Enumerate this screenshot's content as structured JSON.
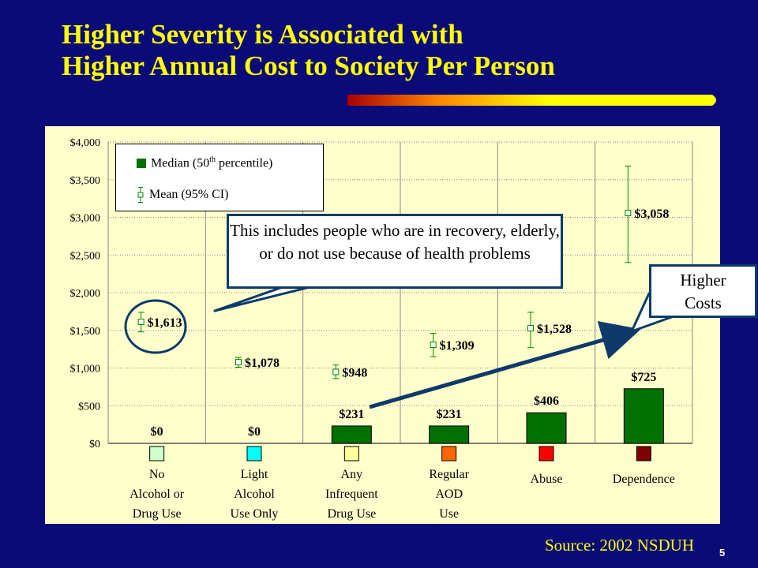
{
  "slide": {
    "title_line1": "Higher Severity is Associated with",
    "title_line2": "Higher Annual Cost to Society Per Person",
    "source": "Source: 2002 NSDUH",
    "page_number": "5",
    "colors": {
      "background": "#0a0a78",
      "title": "#ffff00",
      "plot_area": "#ffffcc",
      "median_bar": "#007000",
      "mean_marker": "#008800"
    }
  },
  "legend": {
    "median_label_pre": "Median (50",
    "median_label_sup": "th",
    "median_label_post": " percentile)",
    "mean_label": "Mean (95% CI)"
  },
  "callouts": {
    "health_note": "This includes  people who are in recovery, elderly, or do not use because of health problems",
    "higher_costs_line1": "Higher",
    "higher_costs_line2": "Costs"
  },
  "chart_data": {
    "type": "bar",
    "categories": [
      "No Alcohol or Drug Use",
      "Light Alcohol Use Only",
      "Any Infrequent Drug Use",
      "Regular AOD Use",
      "Abuse",
      "Dependence"
    ],
    "category_label_lines": [
      [
        "No",
        "Alcohol or",
        "Drug Use"
      ],
      [
        "Light",
        "Alcohol",
        "Use Only"
      ],
      [
        "Any",
        "Infrequent",
        "Drug Use"
      ],
      [
        "Regular",
        "AOD",
        "Use"
      ],
      [
        "Abuse"
      ],
      [
        "Dependence"
      ]
    ],
    "category_colors": [
      "#ccffcc",
      "#00ffff",
      "#ffff99",
      "#ff6600",
      "#ff0000",
      "#800000"
    ],
    "series": [
      {
        "name": "Median (50th percentile)",
        "values": [
          0,
          0,
          231,
          231,
          406,
          725
        ],
        "labels": [
          "$0",
          "$0",
          "$231",
          "$231",
          "$406",
          "$725"
        ]
      },
      {
        "name": "Mean (95% CI)",
        "values": [
          1613,
          1078,
          948,
          1309,
          1528,
          3058
        ],
        "ci_low": [
          1480,
          1010,
          860,
          1150,
          1270,
          2400
        ],
        "ci_high": [
          1740,
          1140,
          1040,
          1460,
          1740,
          3680
        ],
        "labels": [
          "$1,613",
          "$1,078",
          "$948",
          "$1,309",
          "$1,528",
          "$3,058"
        ]
      }
    ],
    "ylim": [
      0,
      4000
    ],
    "yticks": [
      0,
      500,
      1000,
      1500,
      2000,
      2500,
      3000,
      3500,
      4000
    ],
    "ytick_labels": [
      "$0",
      "$500",
      "$1,000",
      "$1,500",
      "$2,000",
      "$2,500",
      "$3,000",
      "$3,500",
      "$4,000"
    ],
    "grid": true,
    "title": "",
    "xlabel": "",
    "ylabel": ""
  }
}
